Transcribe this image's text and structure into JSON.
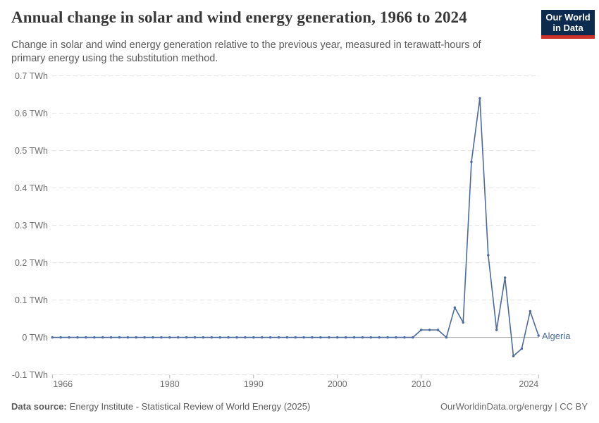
{
  "header": {
    "title": "Annual change in solar and wind energy generation, 1966 to 2024",
    "subtitle_lines": [
      "Change in solar and wind energy generation relative to the previous year, measured in terawatt-hours of",
      "primary energy using the substitution method."
    ],
    "logo": {
      "line1": "Our World",
      "line2": "in Data"
    }
  },
  "footer": {
    "source_label": "Data source:",
    "source_text": "Energy Institute - Statistical Review of World Energy (2025)",
    "credit": "OurWorldinData.org/energy | CC BY"
  },
  "chart_data": {
    "type": "line",
    "title": "Annual change in solar and wind energy generation, 1966 to 2024",
    "entity": "Algeria",
    "unit": "TWh",
    "ylim": [
      -0.1,
      0.7
    ],
    "grid": "dashed-horizontal",
    "legend_position": "end-of-line-label",
    "x": [
      1966,
      1967,
      1968,
      1969,
      1970,
      1971,
      1972,
      1973,
      1974,
      1975,
      1976,
      1977,
      1978,
      1979,
      1980,
      1981,
      1982,
      1983,
      1984,
      1985,
      1986,
      1987,
      1988,
      1989,
      1990,
      1991,
      1992,
      1993,
      1994,
      1995,
      1996,
      1997,
      1998,
      1999,
      2000,
      2001,
      2002,
      2003,
      2004,
      2005,
      2006,
      2007,
      2008,
      2009,
      2010,
      2011,
      2012,
      2013,
      2014,
      2015,
      2016,
      2017,
      2018,
      2019,
      2020,
      2021,
      2022,
      2023,
      2024
    ],
    "series": [
      {
        "name": "Algeria",
        "values": [
          0,
          0,
          0,
          0,
          0,
          0,
          0,
          0,
          0,
          0,
          0,
          0,
          0,
          0,
          0,
          0,
          0,
          0,
          0,
          0,
          0,
          0,
          0,
          0,
          0,
          0,
          0,
          0,
          0,
          0,
          0,
          0,
          0,
          0,
          0,
          0,
          0,
          0,
          0,
          0,
          0,
          0,
          0,
          0,
          0.02,
          0.02,
          0.02,
          0,
          0.08,
          0.04,
          0.47,
          0.64,
          0.22,
          0.02,
          0.16,
          -0.05,
          -0.03,
          0.07,
          0.005
        ]
      }
    ],
    "yticks": [
      {
        "v": 0.7,
        "label": "0.7 TWh"
      },
      {
        "v": 0.6,
        "label": "0.6 TWh"
      },
      {
        "v": 0.5,
        "label": "0.5 TWh"
      },
      {
        "v": 0.4,
        "label": "0.4 TWh"
      },
      {
        "v": 0.3,
        "label": "0.3 TWh"
      },
      {
        "v": 0.2,
        "label": "0.2 TWh"
      },
      {
        "v": 0.1,
        "label": "0.1 TWh"
      },
      {
        "v": 0,
        "label": "0 TWh"
      },
      {
        "v": -0.1,
        "label": "-0.1 TWh"
      }
    ],
    "xticks": [
      {
        "year": 1966,
        "label": "1966",
        "align": "left"
      },
      {
        "year": 1980,
        "label": "1980",
        "align": "center"
      },
      {
        "year": 1990,
        "label": "1990",
        "align": "center"
      },
      {
        "year": 2000,
        "label": "2000",
        "align": "center"
      },
      {
        "year": 2010,
        "label": "2010",
        "align": "center"
      },
      {
        "year": 2024,
        "label": "2024",
        "align": "right"
      }
    ],
    "colors": {
      "line": "#4c6a9c",
      "gridline": "#e2e2e2",
      "zero_line": "#a8a8a8",
      "tick": "#b0b0b0"
    }
  }
}
